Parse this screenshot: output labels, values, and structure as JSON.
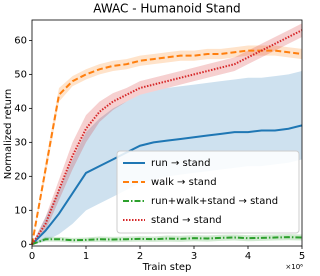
{
  "chart_data": {
    "type": "line",
    "title": "AWAC - Humanoid Stand",
    "x_label": "Train step",
    "y_label": "Normalized return",
    "x_multiplier": "×10⁶",
    "xlim": [
      0,
      5
    ],
    "xticks": [
      0,
      1,
      2,
      3,
      4,
      5
    ],
    "ylim": [
      -0.5,
      66
    ],
    "yticks": [
      0,
      10,
      20,
      30,
      40,
      50,
      60
    ],
    "legend": "lower right",
    "x": [
      0,
      0.25,
      0.5,
      0.75,
      1,
      1.25,
      1.5,
      1.75,
      2,
      2.25,
      2.5,
      2.75,
      3,
      3.25,
      3.5,
      3.75,
      4,
      4.25,
      4.5,
      4.75,
      5
    ],
    "series": [
      {
        "name": "run → stand",
        "color": "#1f77b4",
        "dash": "solid",
        "values": [
          0,
          4,
          9,
          15,
          21,
          23,
          25,
          27,
          29,
          30,
          30.5,
          31,
          31.5,
          32,
          32.5,
          33,
          33,
          33.5,
          33.5,
          34,
          35
        ],
        "lower": [
          0,
          1,
          3,
          6,
          10,
          12,
          14,
          16,
          18,
          19,
          20,
          20.5,
          21,
          21.5,
          22,
          22.5,
          23,
          23,
          23.5,
          24,
          25
        ],
        "upper": [
          0,
          8,
          16,
          25,
          33,
          37,
          40,
          42,
          44,
          45,
          46,
          46.5,
          47,
          47.5,
          48,
          48.5,
          49,
          49,
          49.5,
          50,
          51
        ]
      },
      {
        "name": "walk → stand",
        "color": "#ff7f0e",
        "dash": "dashed",
        "values": [
          0,
          22,
          44,
          48,
          50,
          51.5,
          52.5,
          53,
          54,
          54.5,
          55,
          55.5,
          55.5,
          56,
          56,
          56.5,
          57,
          57,
          57,
          56.5,
          56
        ],
        "lower": [
          0,
          20,
          42,
          46.5,
          48.5,
          50,
          51,
          51.5,
          52.5,
          53,
          53.5,
          54,
          54,
          54.5,
          54.5,
          55,
          55.5,
          55.5,
          55.5,
          55,
          54.5
        ],
        "upper": [
          0,
          24,
          46,
          49.5,
          51.5,
          53,
          54,
          54.5,
          55.5,
          56,
          56.5,
          57,
          57,
          57.5,
          57.5,
          58,
          58.5,
          58.5,
          58.5,
          58,
          57.5
        ]
      },
      {
        "name": "run+walk+stand → stand",
        "color": "#2ca02c",
        "dash": "dashdot",
        "values": [
          0,
          1.5,
          1.5,
          1.2,
          1.3,
          1.5,
          1.4,
          1.5,
          1.6,
          1.5,
          1.7,
          1.6,
          1.8,
          1.7,
          1.9,
          2,
          1.8,
          1.9,
          2,
          2.1,
          2
        ],
        "lower": [
          0,
          0.8,
          0.8,
          0.5,
          0.6,
          0.7,
          0.6,
          0.7,
          0.8,
          0.7,
          0.8,
          0.7,
          0.9,
          0.8,
          1,
          1.1,
          0.9,
          1,
          1.1,
          1.2,
          1.1
        ],
        "upper": [
          0,
          2.2,
          2.2,
          1.9,
          2,
          2.3,
          2.2,
          2.3,
          2.4,
          2.3,
          2.6,
          2.5,
          2.7,
          2.6,
          2.8,
          2.9,
          2.7,
          2.8,
          2.9,
          3,
          2.9
        ]
      },
      {
        "name": "stand → stand",
        "color": "#d62728",
        "dash": "dotted",
        "values": [
          0,
          6,
          16,
          26,
          34,
          39,
          42,
          44,
          46,
          47,
          48,
          49,
          50,
          51,
          52,
          53,
          55,
          57,
          59,
          61,
          63
        ],
        "lower": [
          0,
          4,
          13,
          22,
          30,
          36,
          39.5,
          42,
          44,
          45,
          46,
          47,
          48,
          49,
          50,
          51,
          53,
          55,
          57,
          59,
          61
        ],
        "upper": [
          0,
          8,
          19,
          30,
          38,
          42,
          44.5,
          46,
          48,
          49,
          50,
          51,
          52,
          53,
          54,
          55,
          57,
          59,
          61,
          63,
          65
        ]
      }
    ]
  }
}
